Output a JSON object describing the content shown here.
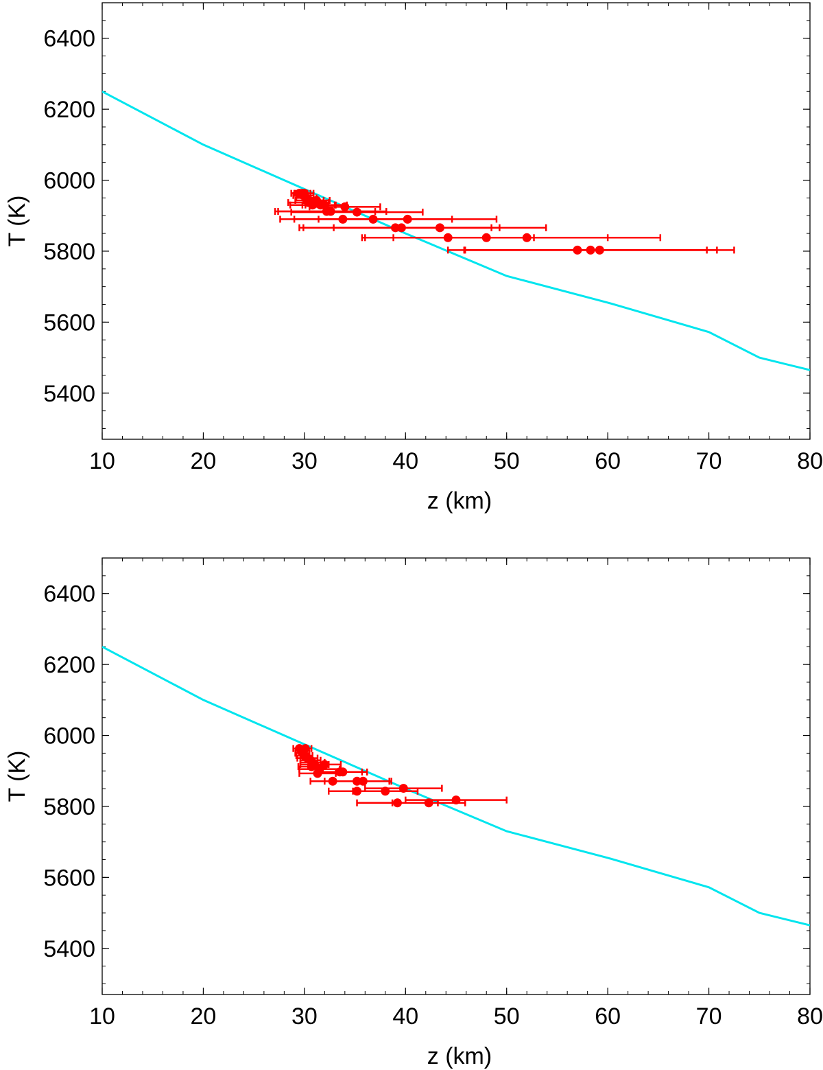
{
  "chart_data": [
    {
      "type": "scatter",
      "xlabel": "z (km)",
      "ylabel": "T (K)",
      "xlim": [
        10,
        80
      ],
      "ylim": [
        5270,
        6500
      ],
      "xticks": [
        10,
        20,
        30,
        40,
        50,
        60,
        70,
        80
      ],
      "yticks": [
        5400,
        5600,
        5800,
        6000,
        6200,
        6400
      ],
      "x_minor_step": 2,
      "y_minor_step": 50,
      "model_curve": {
        "color": "#00e5ee",
        "points": [
          [
            10,
            6250
          ],
          [
            20,
            6100
          ],
          [
            30,
            5975
          ],
          [
            40,
            5850
          ],
          [
            50,
            5730
          ],
          [
            60,
            5655
          ],
          [
            70,
            5572
          ],
          [
            75,
            5500
          ],
          [
            80,
            5465
          ]
        ]
      },
      "series_color": "#ff0000",
      "points": [
        {
          "x": 29.5,
          "y": 5963,
          "xerr": 0.8
        },
        {
          "x": 29.8,
          "y": 5963,
          "xerr": 0.8
        },
        {
          "x": 30.0,
          "y": 5963,
          "xerr": 0.9
        },
        {
          "x": 29.9,
          "y": 5957,
          "xerr": 1.0
        },
        {
          "x": 30.2,
          "y": 5950,
          "xerr": 1.0
        },
        {
          "x": 30.5,
          "y": 5943,
          "xerr": 1.4
        },
        {
          "x": 31.2,
          "y": 5943,
          "xerr": 1.3
        },
        {
          "x": 30.8,
          "y": 5930,
          "xerr": 2.2
        },
        {
          "x": 32.0,
          "y": 5930,
          "xerr": 2.2
        },
        {
          "x": 30.4,
          "y": 5937,
          "xerr": 2.0
        },
        {
          "x": 31.6,
          "y": 5930,
          "xerr": 1.5
        },
        {
          "x": 32.2,
          "y": 5912,
          "xerr": 4.8
        },
        {
          "x": 32.6,
          "y": 5912,
          "xerr": 5.5
        },
        {
          "x": 34.0,
          "y": 5925,
          "xerr": 3.5
        },
        {
          "x": 35.2,
          "y": 5910,
          "xerr": 6.5
        },
        {
          "x": 33.8,
          "y": 5890,
          "xerr": 6.2
        },
        {
          "x": 36.8,
          "y": 5890,
          "xerr": 7.8
        },
        {
          "x": 40.2,
          "y": 5890,
          "xerr": 8.8
        },
        {
          "x": 39.0,
          "y": 5866,
          "xerr": 9.5
        },
        {
          "x": 39.6,
          "y": 5866,
          "xerr": 9.7
        },
        {
          "x": 43.4,
          "y": 5866,
          "xerr": 10.5
        },
        {
          "x": 44.2,
          "y": 5838,
          "xerr": 8.5
        },
        {
          "x": 48.0,
          "y": 5838,
          "xerr": 12.0
        },
        {
          "x": 52.0,
          "y": 5838,
          "xerr": 13.2
        },
        {
          "x": 57.0,
          "y": 5803,
          "xerr": 12.8
        },
        {
          "x": 58.3,
          "y": 5803,
          "xerr": 12.5
        },
        {
          "x": 59.2,
          "y": 5803,
          "xerr": 13.3
        }
      ]
    },
    {
      "type": "scatter",
      "xlabel": "z (km)",
      "ylabel": "T (K)",
      "xlim": [
        10,
        80
      ],
      "ylim": [
        5270,
        6500
      ],
      "xticks": [
        10,
        20,
        30,
        40,
        50,
        60,
        70,
        80
      ],
      "yticks": [
        5400,
        5600,
        5800,
        6000,
        6200,
        6400
      ],
      "x_minor_step": 2,
      "y_minor_step": 50,
      "model_curve": {
        "color": "#00e5ee",
        "points": [
          [
            10,
            6250
          ],
          [
            20,
            6100
          ],
          [
            30,
            5975
          ],
          [
            40,
            5850
          ],
          [
            50,
            5730
          ],
          [
            60,
            5655
          ],
          [
            70,
            5572
          ],
          [
            75,
            5500
          ],
          [
            80,
            5465
          ]
        ]
      },
      "series_color": "#ff0000",
      "points": [
        {
          "x": 29.5,
          "y": 5963,
          "xerr": 0.6
        },
        {
          "x": 30.1,
          "y": 5963,
          "xerr": 0.6
        },
        {
          "x": 29.8,
          "y": 5950,
          "xerr": 0.7
        },
        {
          "x": 30.0,
          "y": 5943,
          "xerr": 0.8
        },
        {
          "x": 30.3,
          "y": 5936,
          "xerr": 1.0
        },
        {
          "x": 30.6,
          "y": 5930,
          "xerr": 1.0
        },
        {
          "x": 30.8,
          "y": 5924,
          "xerr": 1.2
        },
        {
          "x": 31.0,
          "y": 5918,
          "xerr": 1.4
        },
        {
          "x": 30.7,
          "y": 5912,
          "xerr": 1.3
        },
        {
          "x": 32.0,
          "y": 5918,
          "xerr": 1.6
        },
        {
          "x": 31.5,
          "y": 5905,
          "xerr": 2.0
        },
        {
          "x": 31.3,
          "y": 5893,
          "xerr": 1.8
        },
        {
          "x": 33.5,
          "y": 5897,
          "xerr": 2.2
        },
        {
          "x": 33.8,
          "y": 5897,
          "xerr": 2.4
        },
        {
          "x": 32.8,
          "y": 5871,
          "xerr": 2.2
        },
        {
          "x": 35.2,
          "y": 5871,
          "xerr": 3.2
        },
        {
          "x": 35.8,
          "y": 5871,
          "xerr": 2.8
        },
        {
          "x": 35.2,
          "y": 5843,
          "xerr": 2.8
        },
        {
          "x": 38.0,
          "y": 5843,
          "xerr": 3.2
        },
        {
          "x": 39.8,
          "y": 5851,
          "xerr": 3.8
        },
        {
          "x": 39.2,
          "y": 5810,
          "xerr": 4.0
        },
        {
          "x": 42.3,
          "y": 5810,
          "xerr": 3.6
        },
        {
          "x": 45.0,
          "y": 5818,
          "xerr": 5.0
        }
      ]
    }
  ]
}
